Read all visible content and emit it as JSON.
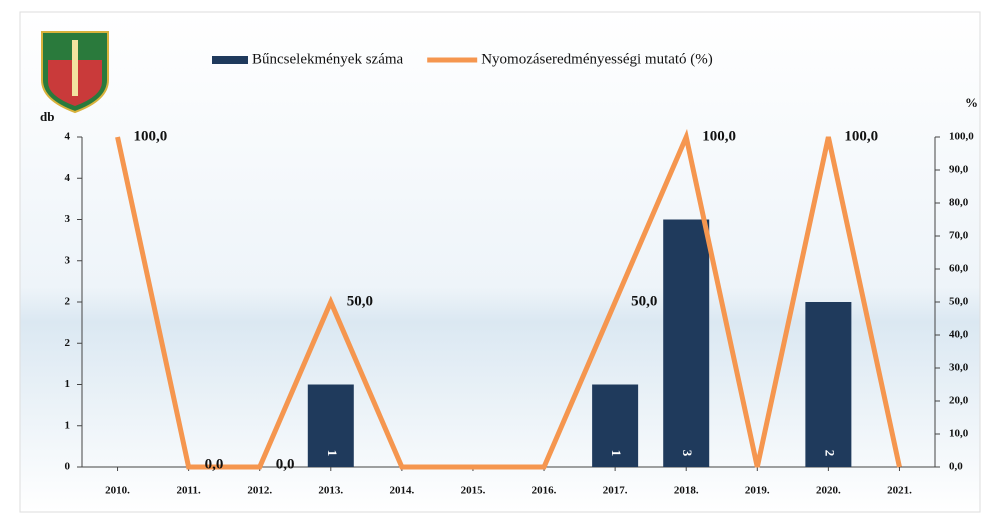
{
  "chart_data": {
    "type": "bar-line",
    "y_label": "db",
    "y2_label": "%",
    "categories": [
      "2010.",
      "2011.",
      "2012.",
      "2013.",
      "2014.",
      "2015.",
      "2016.",
      "2017.",
      "2018.",
      "2019.",
      "2020.",
      "2021."
    ],
    "series": [
      {
        "name": "Bűncselekmények száma",
        "type": "bar",
        "color": "#1f3a5c",
        "values": [
          0,
          0,
          0,
          1,
          0,
          0,
          0,
          1,
          3,
          0,
          2,
          0
        ],
        "value_labels": [
          null,
          null,
          null,
          "1",
          null,
          null,
          null,
          "1",
          "3",
          null,
          "2",
          null
        ]
      },
      {
        "name": "Nyomozáseredményességi mutató (%)",
        "type": "line",
        "axis": "y2",
        "color": "#f5964f",
        "values": [
          100,
          0,
          0,
          50,
          0,
          0,
          0,
          50,
          100,
          0,
          100,
          0
        ],
        "value_labels": [
          "100,0",
          "0,0",
          "0,0",
          "50,0",
          null,
          null,
          null,
          "50,0",
          "100,0",
          null,
          "100,0",
          null
        ]
      }
    ],
    "ylim": [
      0,
      4
    ],
    "yticks": [
      0,
      {
        "value": 0.5,
        "label": "1"
      },
      1,
      {
        "value": 1.5,
        "label": "2"
      },
      2,
      {
        "value": 2.5,
        "label": "3"
      },
      3,
      {
        "value": 3.5,
        "label": "4"
      },
      4
    ],
    "y2lim": [
      0,
      100
    ],
    "y2ticks": [
      {
        "value": 0,
        "label": "0,0"
      },
      {
        "value": 10,
        "label": "10,0"
      },
      {
        "value": 20,
        "label": "20,0"
      },
      {
        "value": 30,
        "label": "30,0"
      },
      {
        "value": 40,
        "label": "40,0"
      },
      {
        "value": 50,
        "label": "50,0"
      },
      {
        "value": 60,
        "label": "60,0"
      },
      {
        "value": 70,
        "label": "70,0"
      },
      {
        "value": 80,
        "label": "80,0"
      },
      {
        "value": 90,
        "label": "90,0"
      },
      {
        "value": 100,
        "label": "100,0"
      }
    ]
  }
}
